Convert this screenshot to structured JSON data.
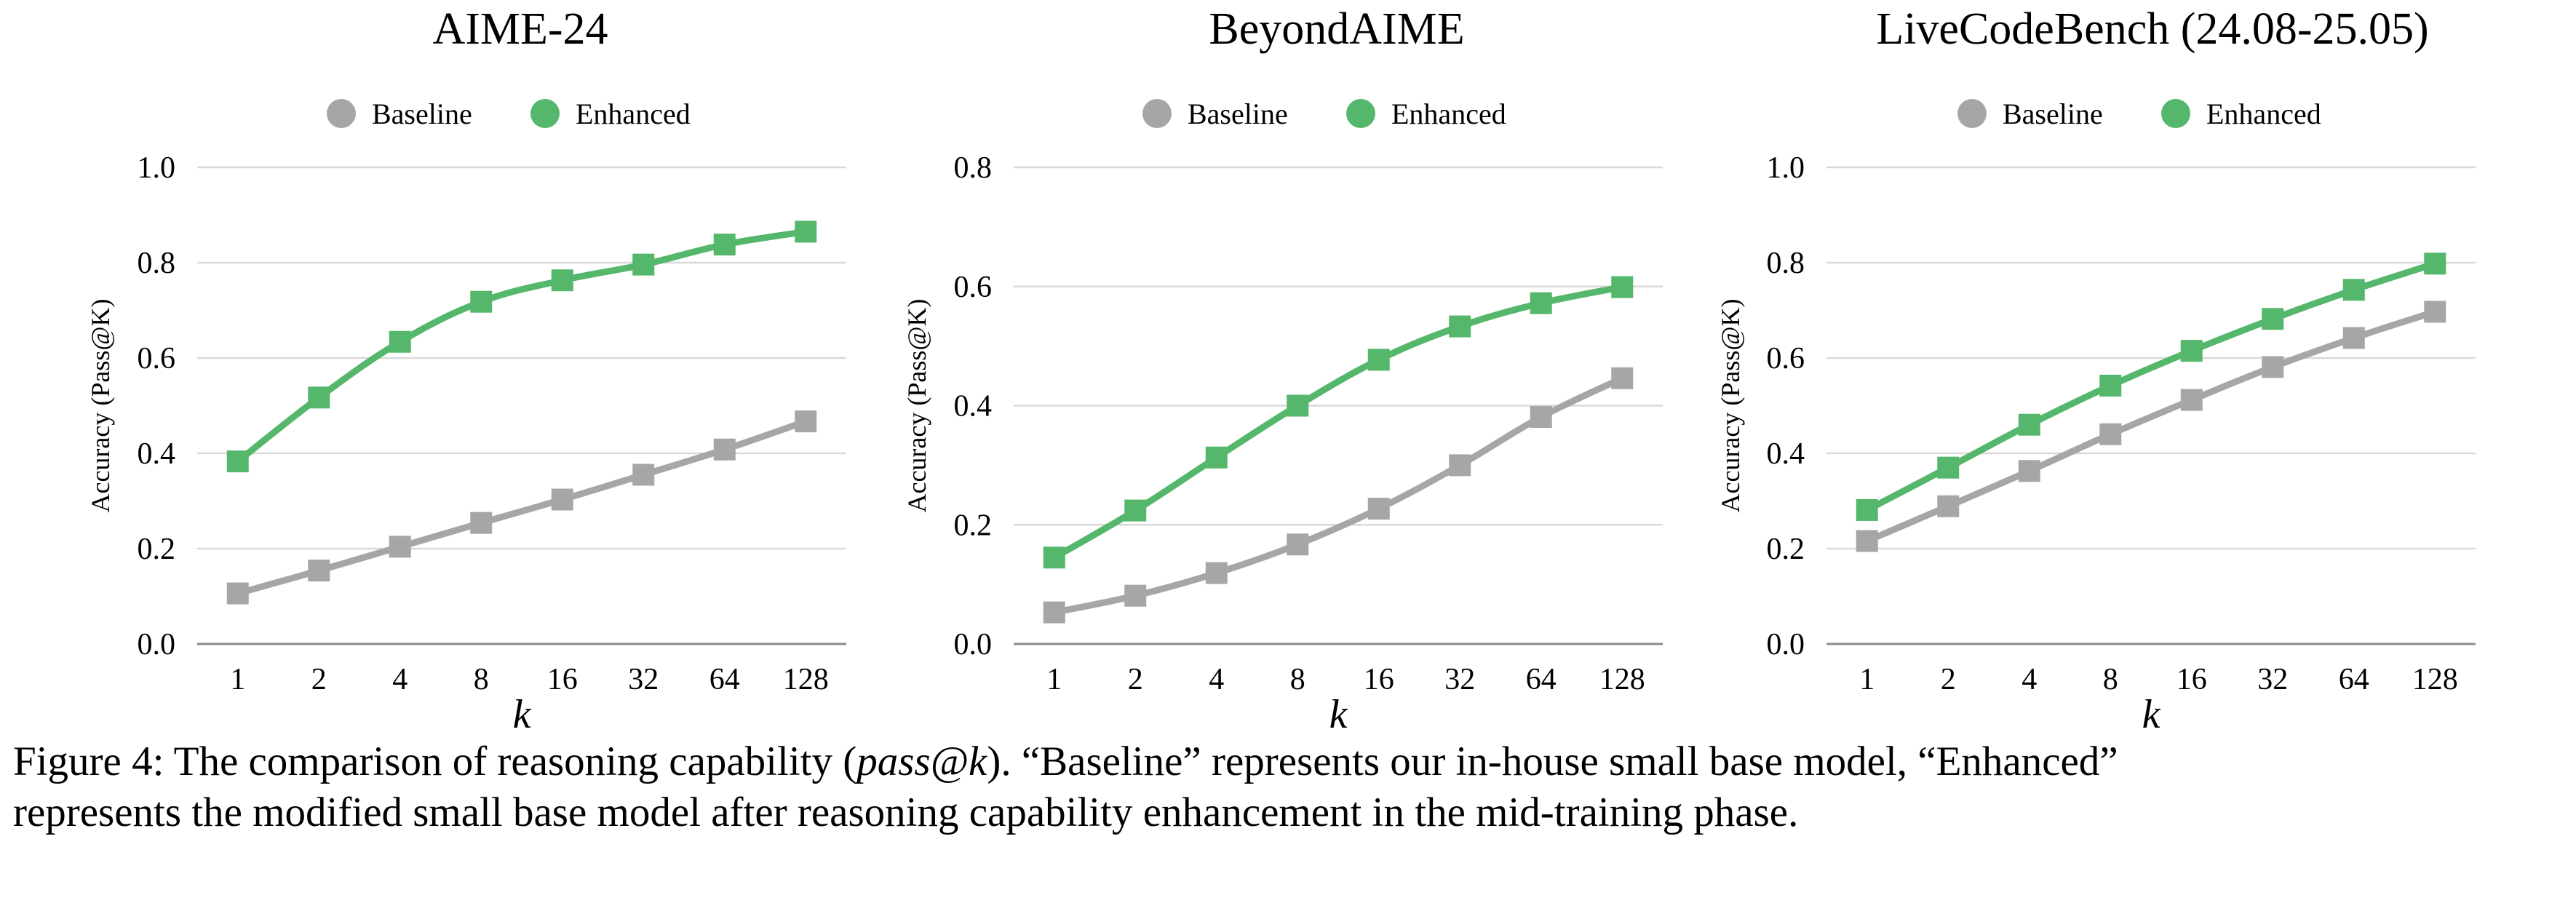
{
  "chart_data": [
    {
      "type": "line",
      "title": "AIME-24",
      "xlabel": "k",
      "ylabel": "Accuracy (Pass@K)",
      "categories": [
        "1",
        "2",
        "4",
        "8",
        "16",
        "32",
        "64",
        "128"
      ],
      "ylim": [
        0,
        1.0
      ],
      "yticks": [
        "0.0",
        "0.2",
        "0.4",
        "0.6",
        "0.8",
        "1.0"
      ],
      "grid": true,
      "legend_position": "top-center",
      "series": [
        {
          "name": "Baseline",
          "color": "#a6a6a6",
          "values": [
            0.106,
            0.154,
            0.204,
            0.254,
            0.303,
            0.355,
            0.408,
            0.467
          ]
        },
        {
          "name": "Enhanced",
          "color": "#55b76b",
          "values": [
            0.383,
            0.517,
            0.634,
            0.718,
            0.763,
            0.796,
            0.838,
            0.865
          ]
        }
      ]
    },
    {
      "type": "line",
      "title": "BeyondAIME",
      "xlabel": "k",
      "ylabel": "Accuracy (Pass@K)",
      "categories": [
        "1",
        "2",
        "4",
        "8",
        "16",
        "32",
        "64",
        "128"
      ],
      "ylim": [
        0,
        0.8
      ],
      "yticks": [
        "0.0",
        "0.2",
        "0.4",
        "0.6",
        "0.8"
      ],
      "grid": true,
      "legend_position": "top-center",
      "series": [
        {
          "name": "Baseline",
          "color": "#a6a6a6",
          "values": [
            0.053,
            0.081,
            0.119,
            0.167,
            0.227,
            0.3,
            0.381,
            0.446
          ]
        },
        {
          "name": "Enhanced",
          "color": "#55b76b",
          "values": [
            0.145,
            0.224,
            0.313,
            0.4,
            0.477,
            0.533,
            0.572,
            0.599
          ]
        }
      ]
    },
    {
      "type": "line",
      "title": "LiveCodeBench (24.08-25.05)",
      "xlabel": "k",
      "ylabel": "Accuracy (Pass@K)",
      "categories": [
        "1",
        "2",
        "4",
        "8",
        "16",
        "32",
        "64",
        "128"
      ],
      "ylim": [
        0,
        1.0
      ],
      "yticks": [
        "0.0",
        "0.2",
        "0.4",
        "0.6",
        "0.8",
        "1.0"
      ],
      "grid": true,
      "legend_position": "top-center",
      "series": [
        {
          "name": "Baseline",
          "color": "#a6a6a6",
          "values": [
            0.216,
            0.289,
            0.363,
            0.44,
            0.512,
            0.581,
            0.642,
            0.697
          ]
        },
        {
          "name": "Enhanced",
          "color": "#55b76b",
          "values": [
            0.281,
            0.37,
            0.46,
            0.542,
            0.615,
            0.682,
            0.743,
            0.798
          ]
        }
      ]
    }
  ],
  "caption": {
    "label": "Figure 4:",
    "text_1": "The comparison of reasoning capability (",
    "math": "pass@k",
    "text_2": "). “Baseline” represents our in-house small base model, “Enhanced”",
    "line_2": "represents the modified small base model after reasoning capability enhancement in the mid-training phase."
  }
}
